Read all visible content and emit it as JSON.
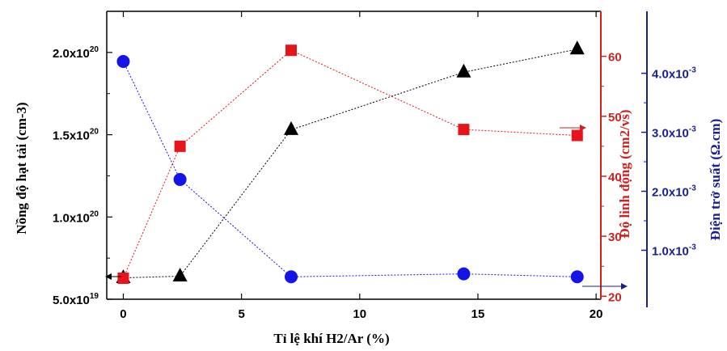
{
  "chart_data": {
    "type": "scatter",
    "title": "",
    "xlabel": "Tỉ lệ khí H2/Ar (%)",
    "x_ticks": [
      "0",
      "5",
      "10",
      "15",
      "20"
    ],
    "xlim": [
      -0.7,
      20.2
    ],
    "y_axes": [
      {
        "id": "left",
        "label": "Nồng độ hạt tải (cm-3)",
        "color": "#000000",
        "ylim": [
          5e+19,
          2.25e+20
        ],
        "ticks": [
          {
            "value": 5e+19,
            "mant": "5.0x10",
            "exp": "19"
          },
          {
            "value": 1e+20,
            "mant": "1.0x10",
            "exp": "20"
          },
          {
            "value": 1.5e+20,
            "mant": "1.5x10",
            "exp": "20"
          },
          {
            "value": 2e+20,
            "mant": "2.0x10",
            "exp": "20"
          }
        ]
      },
      {
        "id": "right1",
        "label": "Độ linh động (cm2/vs)",
        "color": "#cc2222",
        "ylim": [
          19.5,
          67.5
        ],
        "ticks": [
          {
            "value": 20,
            "label": "20"
          },
          {
            "value": 30,
            "label": "30"
          },
          {
            "value": 40,
            "label": "40"
          },
          {
            "value": 50,
            "label": "50"
          },
          {
            "value": 60,
            "label": "60"
          }
        ]
      },
      {
        "id": "right2",
        "label": "Điện trở suất (Ω.cm)",
        "color": "#1a1f8c",
        "ylim": [
          0.00017,
          0.00505
        ],
        "ticks": [
          {
            "value": 0.001,
            "mant": "1.0x10",
            "exp": "-3"
          },
          {
            "value": 0.002,
            "mant": "2.0x10",
            "exp": "-3"
          },
          {
            "value": 0.003,
            "mant": "3.0x10",
            "exp": "-3"
          },
          {
            "value": 0.004,
            "mant": "4.0x10",
            "exp": "-3"
          }
        ]
      }
    ],
    "series": [
      {
        "axis": "left",
        "marker": "triangle",
        "color": "#000000",
        "x": [
          0,
          2.4,
          7.1,
          14.4,
          19.2
        ],
        "y": [
          6.3e+19,
          6.4e+19,
          1.53e+20,
          1.88e+20,
          2.02e+20
        ]
      },
      {
        "axis": "right1",
        "marker": "square",
        "color": "#e8141b",
        "x": [
          0,
          2.4,
          7.1,
          14.4,
          19.2
        ],
        "y": [
          23,
          45,
          61,
          47.8,
          46.8
        ]
      },
      {
        "axis": "right2",
        "marker": "circle",
        "color": "#1414e6",
        "x": [
          0,
          2.4,
          7.1,
          14.4,
          19.2
        ],
        "y": [
          0.0042,
          0.0022,
          0.00055,
          0.0006,
          0.00055
        ]
      }
    ],
    "grid": false,
    "legend": "none"
  }
}
